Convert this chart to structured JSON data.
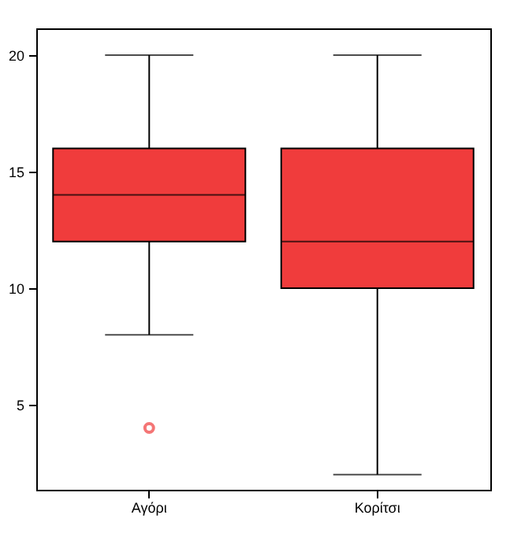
{
  "chart_data": {
    "type": "box",
    "categories": [
      "Αγόρι",
      "Κορίτσι"
    ],
    "boxes": [
      {
        "low": 8,
        "q1": 12,
        "median": 14,
        "q3": 16,
        "high": 20,
        "outliers": [
          4
        ]
      },
      {
        "low": 2,
        "q1": 10,
        "median": 12,
        "q3": 16,
        "high": 20
      }
    ],
    "color": "#f03c3c",
    "ylim": [
      1.35,
      21.15
    ],
    "yticks": [
      5,
      10,
      15,
      20
    ]
  }
}
